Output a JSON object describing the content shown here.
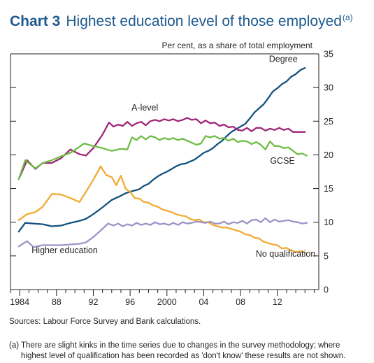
{
  "title": {
    "prefix": "Chart 3",
    "main": "Highest education level of those employed",
    "footnote_marker": "(a)"
  },
  "chart_data": {
    "type": "line",
    "unit_label": "Per cent, as a share of total employment",
    "xlabel": "",
    "ylabel": "",
    "xlim": [
      1983,
      2016.5
    ],
    "ylim": [
      0,
      35
    ],
    "y_ticks": [
      0,
      5,
      10,
      15,
      20,
      25,
      30,
      35
    ],
    "x_ticks": [
      1984,
      1988,
      1992,
      1996,
      2000,
      2004,
      2008,
      2012
    ],
    "x_tick_labels": [
      "1984",
      "88",
      "92",
      "96",
      "2000",
      "04",
      "08",
      "12"
    ],
    "grid": false,
    "series": [
      {
        "name": "Degree",
        "color": "#13527e",
        "points": [
          [
            1983.9,
            8.6
          ],
          [
            1984.6,
            9.9
          ],
          [
            1985.5,
            9.8
          ],
          [
            1986.5,
            9.7
          ],
          [
            1987.5,
            9.4
          ],
          [
            1988.5,
            9.5
          ],
          [
            1989.5,
            9.9
          ],
          [
            1990.5,
            10.2
          ],
          [
            1991.2,
            10.5
          ],
          [
            1992,
            11.2
          ],
          [
            1993,
            12.2
          ],
          [
            1994,
            13.3
          ],
          [
            1994.8,
            13.8
          ],
          [
            1995.5,
            14.3
          ],
          [
            1996.2,
            14.6
          ],
          [
            1997,
            14.9
          ],
          [
            1997.5,
            15.4
          ],
          [
            1998,
            15.7
          ],
          [
            1998.5,
            16.3
          ],
          [
            1999,
            16.8
          ],
          [
            1999.5,
            17.2
          ],
          [
            2000,
            17.5
          ],
          [
            2000.5,
            17.9
          ],
          [
            2001,
            18.3
          ],
          [
            2001.5,
            18.6
          ],
          [
            2002,
            18.7
          ],
          [
            2002.5,
            19
          ],
          [
            2003,
            19.3
          ],
          [
            2003.5,
            19.8
          ],
          [
            2004,
            20.3
          ],
          [
            2004.5,
            20.6
          ],
          [
            2005,
            21
          ],
          [
            2005.5,
            21.6
          ],
          [
            2006,
            22.1
          ],
          [
            2006.5,
            22.8
          ],
          [
            2007,
            23.4
          ],
          [
            2007.5,
            23.8
          ],
          [
            2008,
            24.2
          ],
          [
            2008.5,
            24.6
          ],
          [
            2009,
            25.4
          ],
          [
            2009.5,
            26.3
          ],
          [
            2010,
            26.9
          ],
          [
            2010.5,
            27.5
          ],
          [
            2011,
            28.4
          ],
          [
            2011.5,
            29.4
          ],
          [
            2012,
            29.9
          ],
          [
            2012.5,
            30.5
          ],
          [
            2013,
            30.9
          ],
          [
            2013.5,
            31.6
          ],
          [
            2014,
            32
          ],
          [
            2014.5,
            32.6
          ],
          [
            2015,
            32.9
          ]
        ]
      },
      {
        "name": "A-level",
        "color": "#a02577",
        "points": [
          [
            1983.9,
            16.4
          ],
          [
            1984.8,
            19.2
          ],
          [
            1985.7,
            17.9
          ],
          [
            1986.5,
            18.8
          ],
          [
            1987.5,
            18.8
          ],
          [
            1988.5,
            19.5
          ],
          [
            1989.5,
            20.8
          ],
          [
            1990.5,
            20.1
          ],
          [
            1991.2,
            19.9
          ],
          [
            1992,
            21
          ],
          [
            1993,
            23
          ],
          [
            1993.7,
            24.8
          ],
          [
            1994.2,
            24.2
          ],
          [
            1994.7,
            24.5
          ],
          [
            1995.2,
            24.3
          ],
          [
            1995.7,
            24.9
          ],
          [
            1996.2,
            24.3
          ],
          [
            1996.7,
            24.7
          ],
          [
            1997.2,
            24.9
          ],
          [
            1997.7,
            24.4
          ],
          [
            1998.2,
            25
          ],
          [
            1998.7,
            25.2
          ],
          [
            1999.2,
            25
          ],
          [
            1999.7,
            25.3
          ],
          [
            2000.2,
            25.1
          ],
          [
            2000.7,
            25.3
          ],
          [
            2001.2,
            25
          ],
          [
            2001.7,
            25.2
          ],
          [
            2002.2,
            25.5
          ],
          [
            2002.7,
            25.2
          ],
          [
            2003.2,
            25.3
          ],
          [
            2003.7,
            24.7
          ],
          [
            2004.2,
            25.1
          ],
          [
            2004.7,
            24.7
          ],
          [
            2005.2,
            24.8
          ],
          [
            2005.7,
            24.3
          ],
          [
            2006.2,
            24.5
          ],
          [
            2006.7,
            24.1
          ],
          [
            2007.2,
            24.2
          ],
          [
            2007.7,
            23.7
          ],
          [
            2008.2,
            23.6
          ],
          [
            2008.7,
            24
          ],
          [
            2009.2,
            23.5
          ],
          [
            2009.7,
            24
          ],
          [
            2010.2,
            24
          ],
          [
            2010.7,
            23.6
          ],
          [
            2011.2,
            23.9
          ],
          [
            2011.7,
            23.7
          ],
          [
            2012.2,
            24
          ],
          [
            2012.7,
            23.7
          ],
          [
            2013.2,
            23.9
          ],
          [
            2013.7,
            23.4
          ],
          [
            2014.2,
            23.4
          ],
          [
            2015,
            23.4
          ]
        ]
      },
      {
        "name": "GCSE",
        "color": "#6ebd45",
        "points": [
          [
            1983.9,
            16.4
          ],
          [
            1984.6,
            19.2
          ],
          [
            1985.7,
            18
          ],
          [
            1986.5,
            18.8
          ],
          [
            1987.5,
            19.2
          ],
          [
            1988.5,
            19.8
          ],
          [
            1989.5,
            20.3
          ],
          [
            1990.5,
            21.2
          ],
          [
            1991,
            21.7
          ],
          [
            1992,
            21.3
          ],
          [
            1993,
            21
          ],
          [
            1994,
            20.6
          ],
          [
            1995,
            20.9
          ],
          [
            1995.7,
            20.8
          ],
          [
            1996.2,
            22.6
          ],
          [
            1996.7,
            22.2
          ],
          [
            1997.2,
            22.8
          ],
          [
            1997.7,
            22.3
          ],
          [
            1998.2,
            22.8
          ],
          [
            1998.7,
            22.6
          ],
          [
            1999.2,
            22.2
          ],
          [
            1999.7,
            22.5
          ],
          [
            2000.2,
            22.3
          ],
          [
            2000.7,
            22.5
          ],
          [
            2001.2,
            22.2
          ],
          [
            2001.7,
            22.4
          ],
          [
            2002.2,
            22.1
          ],
          [
            2002.7,
            21.8
          ],
          [
            2003.2,
            21.5
          ],
          [
            2003.7,
            21.7
          ],
          [
            2004.2,
            22.8
          ],
          [
            2004.7,
            22.6
          ],
          [
            2005.2,
            22.8
          ],
          [
            2005.7,
            22.4
          ],
          [
            2006.2,
            22.5
          ],
          [
            2006.7,
            22.1
          ],
          [
            2007.2,
            22.4
          ],
          [
            2007.7,
            21.9
          ],
          [
            2008.2,
            22.1
          ],
          [
            2008.7,
            22
          ],
          [
            2009.2,
            21.6
          ],
          [
            2009.7,
            21.9
          ],
          [
            2010.2,
            21.5
          ],
          [
            2010.7,
            20.8
          ],
          [
            2011.2,
            22
          ],
          [
            2011.7,
            21.3
          ],
          [
            2012.2,
            21.3
          ],
          [
            2012.7,
            21
          ],
          [
            2013.2,
            21.1
          ],
          [
            2013.7,
            20.6
          ],
          [
            2014.2,
            20.1
          ],
          [
            2014.7,
            20.2
          ],
          [
            2015.2,
            19.9
          ]
        ]
      },
      {
        "name": "No qualification",
        "color": "#f2ab33",
        "points": [
          [
            1983.9,
            10.3
          ],
          [
            1984.8,
            11.2
          ],
          [
            1985.7,
            11.5
          ],
          [
            1986.5,
            12.3
          ],
          [
            1987.5,
            14.2
          ],
          [
            1988.5,
            14.1
          ],
          [
            1989.5,
            13.6
          ],
          [
            1990.5,
            13
          ],
          [
            1991.2,
            14.5
          ],
          [
            1992,
            16.3
          ],
          [
            1992.8,
            18.3
          ],
          [
            1993.4,
            17
          ],
          [
            1994,
            16.7
          ],
          [
            1994.5,
            15.5
          ],
          [
            1995,
            16.9
          ],
          [
            1995.5,
            15
          ],
          [
            1996,
            14.5
          ],
          [
            1996.5,
            13.6
          ],
          [
            1997,
            13.5
          ],
          [
            1997.5,
            13
          ],
          [
            1998,
            12.9
          ],
          [
            1998.5,
            12.5
          ],
          [
            1999,
            12.3
          ],
          [
            1999.5,
            11.9
          ],
          [
            2000,
            11.7
          ],
          [
            2000.5,
            11.5
          ],
          [
            2001,
            11.2
          ],
          [
            2001.5,
            11
          ],
          [
            2002,
            10.9
          ],
          [
            2002.5,
            10.5
          ],
          [
            2003,
            10.3
          ],
          [
            2003.5,
            10.4
          ],
          [
            2004,
            10
          ],
          [
            2004.5,
            10
          ],
          [
            2005,
            9.6
          ],
          [
            2005.5,
            9.4
          ],
          [
            2006,
            9.2
          ],
          [
            2006.5,
            9.2
          ],
          [
            2007,
            9
          ],
          [
            2007.5,
            8.8
          ],
          [
            2008,
            8.6
          ],
          [
            2008.5,
            8.2
          ],
          [
            2009,
            8.1
          ],
          [
            2009.5,
            7.7
          ],
          [
            2010,
            7.6
          ],
          [
            2010.5,
            7.1
          ],
          [
            2011,
            6.9
          ],
          [
            2011.5,
            6.7
          ],
          [
            2012,
            6.6
          ],
          [
            2012.5,
            6.1
          ],
          [
            2013,
            6.2
          ],
          [
            2013.5,
            5.8
          ],
          [
            2014,
            5.6
          ],
          [
            2014.5,
            5.7
          ],
          [
            2015,
            5.5
          ]
        ]
      },
      {
        "name": "Higher education",
        "color": "#9d93c8",
        "points": [
          [
            1983.9,
            6.4
          ],
          [
            1984.8,
            7.2
          ],
          [
            1985.5,
            6.3
          ],
          [
            1986.5,
            6.6
          ],
          [
            1987.5,
            6.6
          ],
          [
            1988.5,
            6.6
          ],
          [
            1989.5,
            6.7
          ],
          [
            1990.5,
            6.8
          ],
          [
            1991.2,
            7
          ],
          [
            1992,
            7.8
          ],
          [
            1993,
            9
          ],
          [
            1993.6,
            9.8
          ],
          [
            1994.2,
            9.5
          ],
          [
            1994.7,
            9.8
          ],
          [
            1995.2,
            9.4
          ],
          [
            1995.7,
            9.7
          ],
          [
            1996.2,
            9.5
          ],
          [
            1996.7,
            9.9
          ],
          [
            1997.2,
            9.6
          ],
          [
            1997.7,
            9.8
          ],
          [
            1998.2,
            9.6
          ],
          [
            1998.7,
            10
          ],
          [
            1999.2,
            9.7
          ],
          [
            1999.7,
            9.8
          ],
          [
            2000.2,
            9.6
          ],
          [
            2000.7,
            9.9
          ],
          [
            2001.2,
            9.6
          ],
          [
            2001.7,
            10
          ],
          [
            2002.2,
            9.8
          ],
          [
            2002.7,
            9.9
          ],
          [
            2003.2,
            10.1
          ],
          [
            2003.7,
            10
          ],
          [
            2004.2,
            9.9
          ],
          [
            2004.7,
            10.1
          ],
          [
            2005.2,
            9.8
          ],
          [
            2005.7,
            9.8
          ],
          [
            2006.2,
            10.1
          ],
          [
            2006.7,
            9.7
          ],
          [
            2007.2,
            10
          ],
          [
            2007.7,
            9.9
          ],
          [
            2008.2,
            10.2
          ],
          [
            2008.7,
            9.8
          ],
          [
            2009.2,
            10.3
          ],
          [
            2009.7,
            10.4
          ],
          [
            2010.2,
            10
          ],
          [
            2010.7,
            10.6
          ],
          [
            2011.2,
            10
          ],
          [
            2011.7,
            10.4
          ],
          [
            2012.2,
            10.1
          ],
          [
            2012.7,
            10.2
          ],
          [
            2013.2,
            10.3
          ],
          [
            2013.7,
            10.1
          ],
          [
            2014.2,
            10
          ],
          [
            2014.7,
            9.8
          ],
          [
            2015.2,
            9.9
          ]
        ]
      }
    ],
    "annotations": [
      {
        "text": "Degree",
        "x": 2014.2,
        "y": 33.8,
        "anchor": "end"
      },
      {
        "text": "A-level",
        "x": 1997.6,
        "y": 26.6,
        "anchor": "middle"
      },
      {
        "text": "GCSE",
        "x": 2013.9,
        "y": 18.7,
        "anchor": "end"
      },
      {
        "text": "No qualification",
        "x": 2012.9,
        "y": 4.9,
        "anchor": "middle"
      },
      {
        "text": "Higher education",
        "x": 1985.3,
        "y": 5.4,
        "anchor": "start"
      }
    ]
  },
  "sources": "Sources:  Labour Force Survey and Bank calculations.",
  "note": {
    "marker": "(a)",
    "line1": "There are slight kinks in the time series due to changes in the survey methodology;  where",
    "line2": "highest level of qualification has been recorded as 'don't know' these results are not shown."
  }
}
